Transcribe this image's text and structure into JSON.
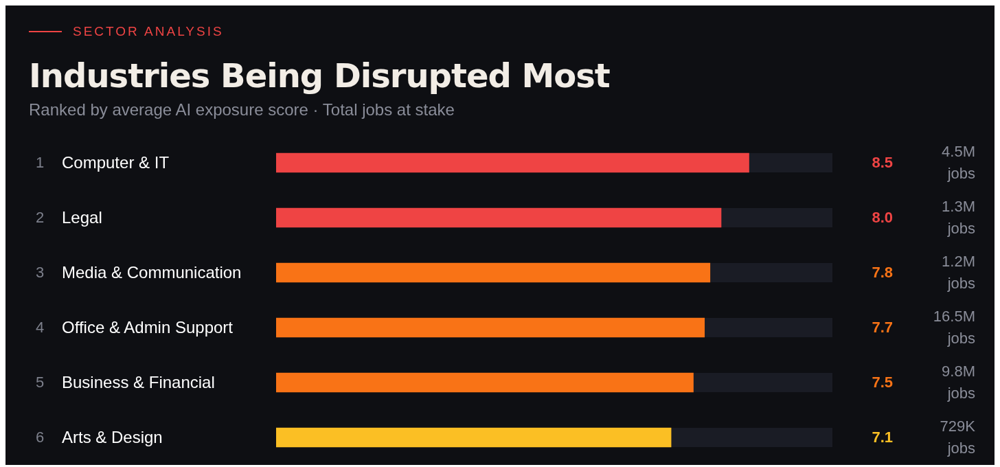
{
  "chart_data": {
    "type": "bar",
    "orientation": "horizontal",
    "title": "Industries Being Disrupted Most",
    "subtitle": "Ranked by average AI exposure score · Total jobs at stake",
    "categories": [
      "Computer & IT",
      "Legal",
      "Media & Communication",
      "Office & Admin Support",
      "Business & Financial",
      "Arts & Design"
    ],
    "values": [
      8.5,
      8.0,
      7.8,
      7.7,
      7.5,
      7.1
    ],
    "value_labels": [
      "8.5",
      "8.0",
      "7.8",
      "7.7",
      "7.5",
      "7.1"
    ],
    "colors": [
      "#ef4444",
      "#ef4444",
      "#f97316",
      "#f97316",
      "#f97316",
      "#fbbf24"
    ],
    "xlim": [
      0,
      10
    ],
    "annotations": [
      "SECTOR ANALYSIS",
      "1",
      "2",
      "3",
      "4",
      "5",
      "6",
      "4.5M jobs",
      "1.3M jobs",
      "1.2M jobs",
      "16.5M jobs",
      "9.8M jobs",
      "729K jobs"
    ]
  }
}
